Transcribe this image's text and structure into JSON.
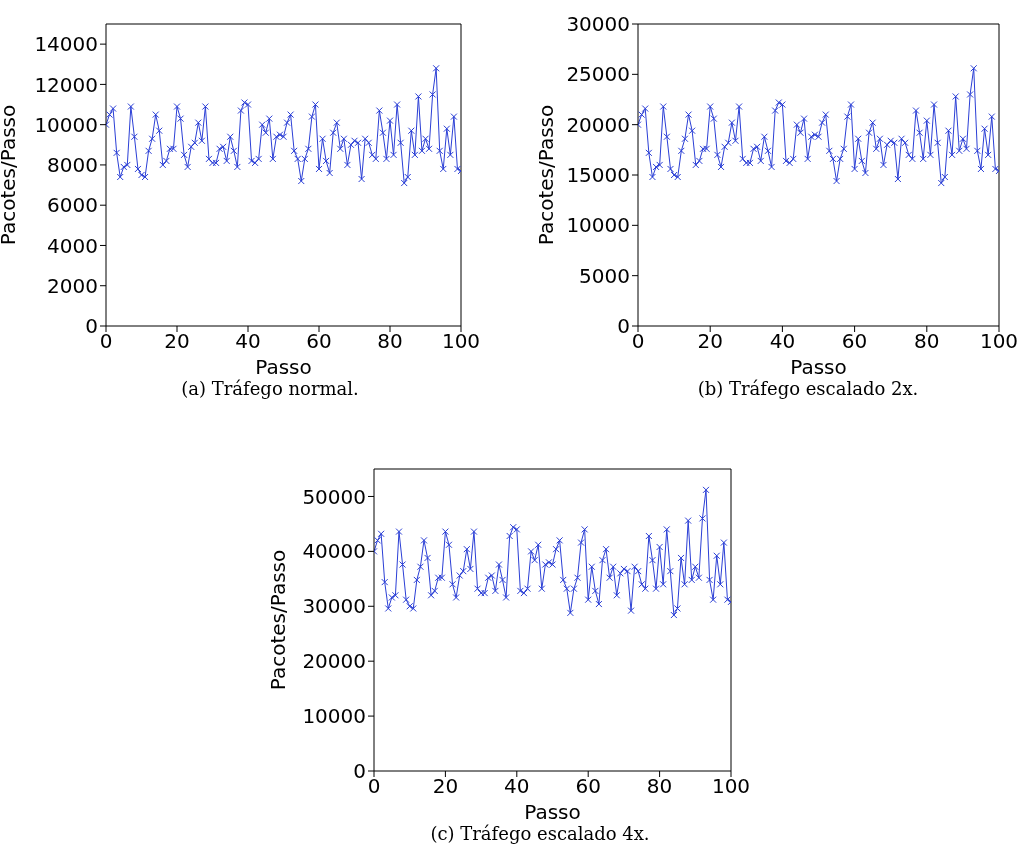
{
  "chart_data": [
    {
      "type": "line",
      "xlabel": "Passo",
      "ylabel": "Pacotes/Passo",
      "annotations": [
        "(a) Tráfego normal."
      ],
      "color": "#2b3fd6",
      "marker": "cross",
      "grid": false,
      "xlim": [
        0,
        100
      ],
      "xticks": [
        0,
        20,
        40,
        60,
        80,
        100
      ],
      "ylim": [
        0,
        15000
      ],
      "yticks": [
        0,
        2000,
        4000,
        6000,
        8000,
        10000,
        12000,
        14000
      ],
      "x": [
        0,
        1,
        2,
        3,
        4,
        5,
        6,
        7,
        8,
        9,
        10,
        11,
        12,
        13,
        14,
        15,
        16,
        17,
        18,
        19,
        20,
        21,
        22,
        23,
        24,
        25,
        26,
        27,
        28,
        29,
        30,
        31,
        32,
        33,
        34,
        35,
        36,
        37,
        38,
        39,
        40,
        41,
        42,
        43,
        44,
        45,
        46,
        47,
        48,
        49,
        50,
        51,
        52,
        53,
        54,
        55,
        56,
        57,
        58,
        59,
        60,
        61,
        62,
        63,
        64,
        65,
        66,
        67,
        68,
        69,
        70,
        71,
        72,
        73,
        74,
        75,
        76,
        77,
        78,
        79,
        80,
        81,
        82,
        83,
        84,
        85,
        86,
        87,
        88,
        89,
        90,
        91,
        92,
        93,
        94,
        95,
        96,
        97,
        98,
        99,
        100
      ],
      "values": [
        10000,
        10500,
        10800,
        8600,
        7400,
        7900,
        8000,
        10900,
        9400,
        7800,
        7500,
        7400,
        8700,
        9300,
        10500,
        9700,
        8000,
        8200,
        8800,
        8800,
        10900,
        10300,
        8500,
        7900,
        8900,
        9100,
        10100,
        9200,
        10900,
        8300,
        8100,
        8100,
        8800,
        8900,
        8200,
        9400,
        8700,
        7900,
        10700,
        11100,
        11000,
        8200,
        8100,
        8300,
        10000,
        9600,
        10300,
        8300,
        9400,
        9500,
        9400,
        10100,
        10500,
        8700,
        8300,
        7200,
        8300,
        8800,
        10400,
        11000,
        7800,
        9300,
        8200,
        7600,
        9600,
        10100,
        8800,
        9300,
        8000,
        9000,
        9200,
        9100,
        7300,
        9300,
        9100,
        8500,
        8300,
        10700,
        9600,
        8300,
        10200,
        8500,
        11000,
        9100,
        7100,
        7400,
        9700,
        8500,
        11400,
        8700,
        9300,
        8800,
        11500,
        12800,
        8700,
        7800,
        9800,
        8500,
        10400,
        7800,
        7700
      ]
    },
    {
      "type": "line",
      "xlabel": "Passo",
      "ylabel": "Pacotes/Passo",
      "annotations": [
        "(b) Tráfego escalado 2x."
      ],
      "color": "#2b3fd6",
      "marker": "cross",
      "grid": false,
      "xlim": [
        0,
        100
      ],
      "xticks": [
        0,
        20,
        40,
        60,
        80,
        100
      ],
      "ylim": [
        0,
        30000
      ],
      "yticks": [
        0,
        5000,
        10000,
        15000,
        20000,
        25000,
        30000
      ],
      "x": [
        0,
        1,
        2,
        3,
        4,
        5,
        6,
        7,
        8,
        9,
        10,
        11,
        12,
        13,
        14,
        15,
        16,
        17,
        18,
        19,
        20,
        21,
        22,
        23,
        24,
        25,
        26,
        27,
        28,
        29,
        30,
        31,
        32,
        33,
        34,
        35,
        36,
        37,
        38,
        39,
        40,
        41,
        42,
        43,
        44,
        45,
        46,
        47,
        48,
        49,
        50,
        51,
        52,
        53,
        54,
        55,
        56,
        57,
        58,
        59,
        60,
        61,
        62,
        63,
        64,
        65,
        66,
        67,
        68,
        69,
        70,
        71,
        72,
        73,
        74,
        75,
        76,
        77,
        78,
        79,
        80,
        81,
        82,
        83,
        84,
        85,
        86,
        87,
        88,
        89,
        90,
        91,
        92,
        93,
        94,
        95,
        96,
        97,
        98,
        99,
        100
      ],
      "values": [
        20000,
        21000,
        21600,
        17200,
        14800,
        15800,
        16000,
        21800,
        18800,
        15600,
        15000,
        14800,
        17400,
        18600,
        21000,
        19400,
        16000,
        16400,
        17600,
        17600,
        21800,
        20600,
        17000,
        15800,
        17800,
        18200,
        20200,
        18400,
        21800,
        16600,
        16200,
        16200,
        17600,
        17800,
        16400,
        18800,
        17400,
        15800,
        21400,
        22200,
        22000,
        16400,
        16200,
        16600,
        20000,
        19200,
        20600,
        16600,
        18800,
        19000,
        18800,
        20200,
        21000,
        17400,
        16600,
        14400,
        16600,
        17600,
        20800,
        22000,
        15600,
        18600,
        16400,
        15200,
        19200,
        20200,
        17600,
        18600,
        16000,
        18000,
        18400,
        18200,
        14600,
        18600,
        18200,
        17000,
        16600,
        21400,
        19200,
        16600,
        20400,
        17000,
        22000,
        18200,
        14200,
        14800,
        19400,
        17000,
        22800,
        17400,
        18600,
        17600,
        23000,
        25600,
        17400,
        15600,
        19600,
        17000,
        20800,
        15600,
        15400
      ]
    },
    {
      "type": "line",
      "xlabel": "Passo",
      "ylabel": "Pacotes/Passo",
      "annotations": [
        "(c) Tráfego escalado 4x."
      ],
      "color": "#2b3fd6",
      "marker": "cross",
      "grid": false,
      "xlim": [
        0,
        100
      ],
      "xticks": [
        0,
        20,
        40,
        60,
        80,
        100
      ],
      "ylim": [
        0,
        55000
      ],
      "yticks": [
        0,
        10000,
        20000,
        30000,
        40000,
        50000
      ],
      "x": [
        0,
        1,
        2,
        3,
        4,
        5,
        6,
        7,
        8,
        9,
        10,
        11,
        12,
        13,
        14,
        15,
        16,
        17,
        18,
        19,
        20,
        21,
        22,
        23,
        24,
        25,
        26,
        27,
        28,
        29,
        30,
        31,
        32,
        33,
        34,
        35,
        36,
        37,
        38,
        39,
        40,
        41,
        42,
        43,
        44,
        45,
        46,
        47,
        48,
        49,
        50,
        51,
        52,
        53,
        54,
        55,
        56,
        57,
        58,
        59,
        60,
        61,
        62,
        63,
        64,
        65,
        66,
        67,
        68,
        69,
        70,
        71,
        72,
        73,
        74,
        75,
        76,
        77,
        78,
        79,
        80,
        81,
        82,
        83,
        84,
        85,
        86,
        87,
        88,
        89,
        90,
        91,
        92,
        93,
        94,
        95,
        96,
        97,
        98,
        99,
        100
      ],
      "values": [
        40000,
        42000,
        43200,
        34400,
        29600,
        31600,
        32000,
        43600,
        37600,
        31200,
        30000,
        29600,
        34800,
        37200,
        42000,
        38800,
        32000,
        32800,
        35200,
        35200,
        43600,
        41200,
        34000,
        31600,
        35600,
        36400,
        40400,
        36800,
        43600,
        33200,
        32400,
        32400,
        35200,
        35600,
        32800,
        37600,
        34800,
        31600,
        42800,
        44400,
        44000,
        32800,
        32400,
        33200,
        40000,
        38400,
        41200,
        33200,
        37600,
        38000,
        37600,
        40400,
        42000,
        34800,
        33200,
        28800,
        33200,
        35200,
        41600,
        44000,
        31200,
        37200,
        32800,
        30400,
        38400,
        40400,
        35200,
        37200,
        32000,
        36000,
        36800,
        36400,
        29200,
        37200,
        36400,
        34000,
        33200,
        42800,
        38400,
        33200,
        40800,
        34000,
        44000,
        36400,
        28400,
        29600,
        38800,
        34000,
        45600,
        34800,
        37200,
        35200,
        46000,
        51200,
        34800,
        31200,
        39200,
        34000,
        41600,
        31200,
        30800
      ]
    }
  ]
}
